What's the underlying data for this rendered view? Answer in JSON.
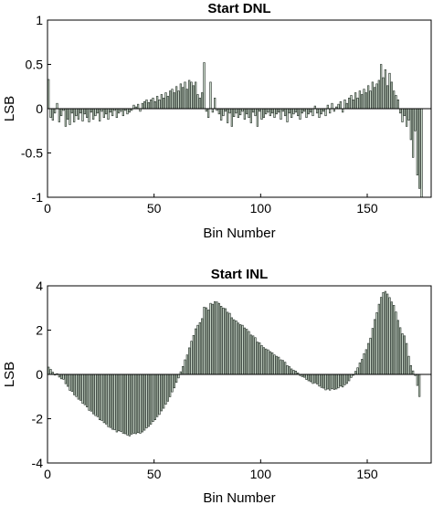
{
  "chart_data": [
    {
      "type": "bar",
      "title": "Start DNL",
      "xlabel": "Bin Number",
      "ylabel": "LSB",
      "xlim": [
        0,
        180
      ],
      "ylim": [
        -1,
        1
      ],
      "xticks": [
        0,
        50,
        100,
        150
      ],
      "yticks": [
        1,
        0.5,
        0,
        -0.5,
        -1
      ],
      "grid": false,
      "bar_color": "#c7d6c7",
      "edge_color": "#1f2a22",
      "x_start": 0,
      "values": [
        0.33,
        -0.1,
        -0.13,
        -0.05,
        0.06,
        -0.15,
        -0.08,
        -0.02,
        -0.2,
        -0.12,
        -0.18,
        -0.05,
        -0.15,
        -0.08,
        -0.12,
        -0.05,
        -0.14,
        -0.06,
        -0.1,
        -0.15,
        -0.04,
        -0.12,
        -0.08,
        -0.05,
        -0.14,
        -0.03,
        -0.1,
        -0.06,
        -0.12,
        -0.04,
        -0.08,
        -0.02,
        -0.1,
        -0.05,
        -0.03,
        -0.08,
        -0.02,
        -0.06,
        -0.04,
        -0.02,
        0.04,
        0.02,
        0.05,
        -0.03,
        0.06,
        0.08,
        0.1,
        0.07,
        0.1,
        0.12,
        0.08,
        0.14,
        0.1,
        0.16,
        0.12,
        0.18,
        0.14,
        0.2,
        0.22,
        0.18,
        0.25,
        0.2,
        0.28,
        0.24,
        0.3,
        0.22,
        0.32,
        0.3,
        0.26,
        0.3,
        0.16,
        0.12,
        0.18,
        0.52,
        -0.03,
        -0.1,
        0.3,
        -0.04,
        0.12,
        -0.02,
        -0.06,
        -0.13,
        -0.08,
        -0.03,
        -0.16,
        -0.05,
        -0.2,
        -0.09,
        -0.05,
        -0.1,
        -0.07,
        -0.03,
        -0.12,
        -0.06,
        -0.1,
        -0.16,
        -0.04,
        -0.08,
        -0.2,
        -0.03,
        -0.12,
        -0.1,
        -0.06,
        -0.04,
        -0.08,
        -0.05,
        -0.1,
        -0.06,
        -0.04,
        -0.12,
        -0.03,
        -0.08,
        -0.15,
        -0.05,
        -0.1,
        -0.06,
        -0.04,
        -0.08,
        -0.12,
        -0.05,
        -0.03,
        -0.1,
        -0.06,
        -0.04,
        -0.08,
        0.03,
        -0.05,
        -0.1,
        -0.06,
        -0.03,
        -0.08,
        0.04,
        -0.05,
        0.06,
        -0.03,
        0.02,
        0.05,
        0.08,
        -0.04,
        0.1,
        0.06,
        0.12,
        0.15,
        0.1,
        0.18,
        0.12,
        0.2,
        0.16,
        0.22,
        0.18,
        0.26,
        0.2,
        0.3,
        0.24,
        0.28,
        0.32,
        0.5,
        0.35,
        0.44,
        0.26,
        0.4,
        0.3,
        0.2,
        0.15,
        0.1,
        -0.05,
        -0.15,
        -0.08,
        -0.2,
        -0.13,
        -0.35,
        -0.55,
        -0.25,
        -0.75,
        -0.9,
        -1.0
      ]
    },
    {
      "type": "bar",
      "title": "Start INL",
      "xlabel": "Bin Number",
      "ylabel": "LSB",
      "xlim": [
        0,
        180
      ],
      "ylim": [
        -4,
        4
      ],
      "xticks": [
        0,
        50,
        100,
        150
      ],
      "yticks": [
        4,
        2,
        0,
        -2,
        -4
      ],
      "grid": false,
      "bar_color": "#c7d6c7",
      "edge_color": "#1f2a22",
      "x_start": 0,
      "values": [
        0.33,
        0.23,
        0.1,
        -0.03,
        0.03,
        -0.12,
        -0.2,
        -0.22,
        -0.42,
        -0.54,
        -0.72,
        -0.77,
        -0.92,
        -1.0,
        -1.12,
        -1.17,
        -1.31,
        -1.37,
        -1.47,
        -1.62,
        -1.66,
        -1.78,
        -1.86,
        -1.91,
        -2.05,
        -2.08,
        -2.18,
        -2.24,
        -2.36,
        -2.4,
        -2.48,
        -2.5,
        -2.6,
        -2.55,
        -2.58,
        -2.66,
        -2.68,
        -2.74,
        -2.78,
        -2.7,
        -2.66,
        -2.68,
        -2.63,
        -2.66,
        -2.6,
        -2.52,
        -2.42,
        -2.35,
        -2.25,
        -2.13,
        -2.05,
        -1.91,
        -1.81,
        -1.65,
        -1.53,
        -1.35,
        -1.21,
        -1.01,
        -0.79,
        -0.61,
        -0.36,
        -0.16,
        0.12,
        0.36,
        0.66,
        0.88,
        1.2,
        1.5,
        1.76,
        2.06,
        2.22,
        2.34,
        2.52,
        3.04,
        3.01,
        2.91,
        3.21,
        3.17,
        3.29,
        3.27,
        3.21,
        3.08,
        3.0,
        2.97,
        2.81,
        2.76,
        2.56,
        2.47,
        2.42,
        2.32,
        2.25,
        2.22,
        2.1,
        2.04,
        1.94,
        1.78,
        1.74,
        1.66,
        1.46,
        1.43,
        1.31,
        1.21,
        1.15,
        1.11,
        1.03,
        0.98,
        0.88,
        0.82,
        0.78,
        0.66,
        0.63,
        0.55,
        0.4,
        0.35,
        0.25,
        0.19,
        0.15,
        0.07,
        -0.05,
        -0.1,
        -0.13,
        -0.23,
        -0.29,
        -0.33,
        -0.41,
        -0.38,
        -0.43,
        -0.53,
        -0.59,
        -0.62,
        -0.7,
        -0.66,
        -0.71,
        -0.65,
        -0.68,
        -0.66,
        -0.61,
        -0.53,
        -0.57,
        -0.47,
        -0.41,
        -0.29,
        -0.14,
        -0.04,
        0.14,
        0.3,
        0.52,
        0.68,
        0.94,
        1.12,
        1.4,
        1.64,
        2.08,
        2.48,
        2.79,
        3.17,
        3.48,
        3.7,
        3.75,
        3.63,
        3.47,
        3.27,
        3.12,
        2.82,
        2.44,
        2.11,
        1.84,
        1.74,
        1.4,
        0.82,
        0.4,
        0.16,
        -0.05,
        -0.5,
        -1.0
      ]
    }
  ]
}
